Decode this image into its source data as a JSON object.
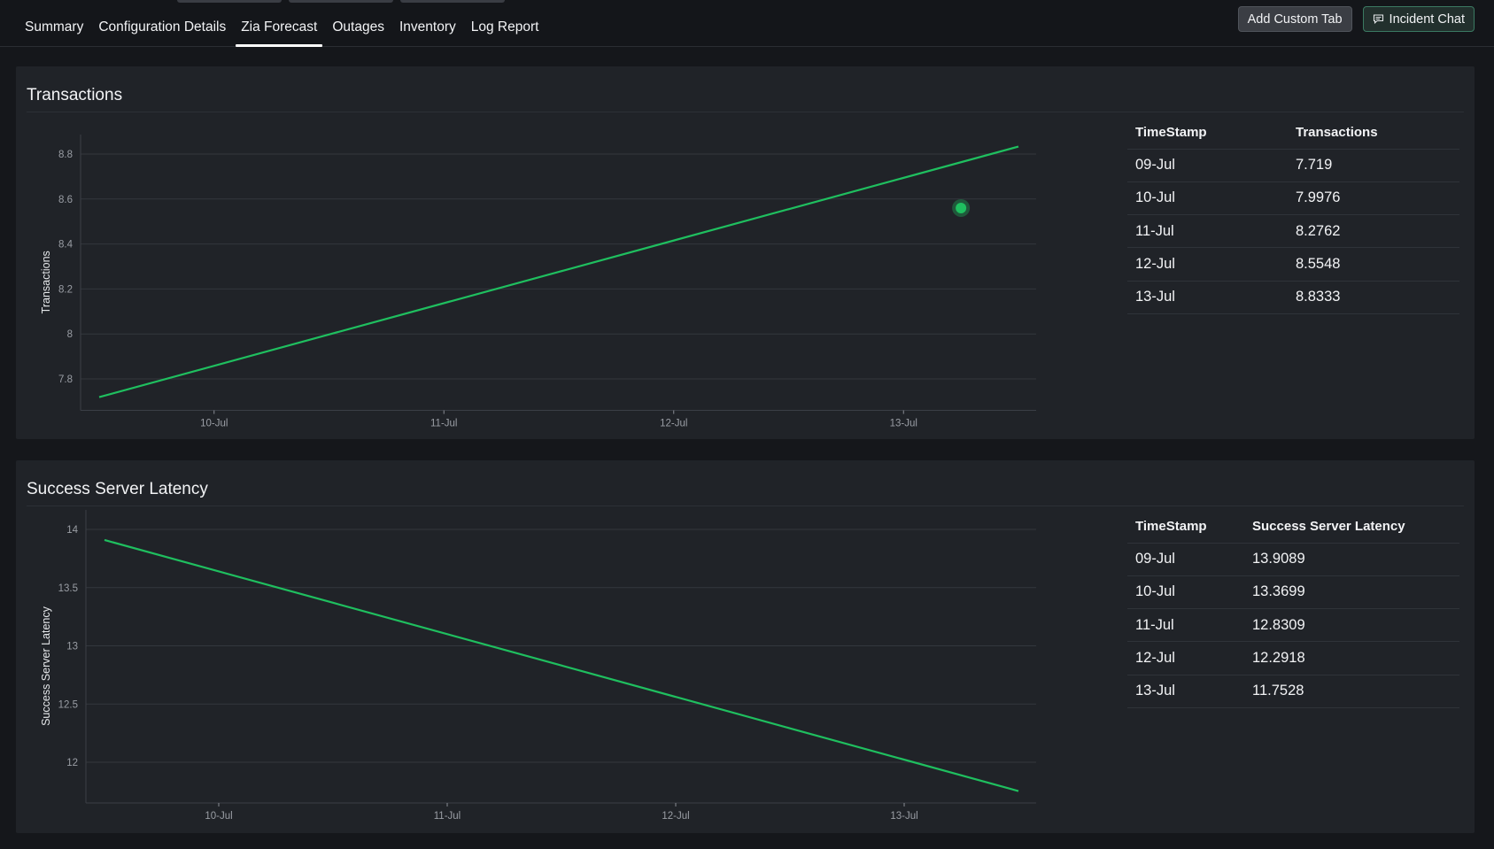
{
  "tabs": [
    {
      "label": "Summary",
      "active": false
    },
    {
      "label": "Configuration Details",
      "active": false
    },
    {
      "label": "Zia Forecast",
      "active": true
    },
    {
      "label": "Outages",
      "active": false
    },
    {
      "label": "Inventory",
      "active": false
    },
    {
      "label": "Log Report",
      "active": false
    }
  ],
  "actions": {
    "add_custom_tab": "Add Custom Tab",
    "incident_chat": "Incident Chat",
    "incident_chat_icon": "chat-bubble-icon"
  },
  "colors": {
    "accent": "#1fbf5f",
    "panel": "#202328",
    "background": "#15171b"
  },
  "panels": [
    {
      "title": "Transactions",
      "table": {
        "headers": [
          "TimeStamp",
          "Transactions"
        ],
        "rows": [
          [
            "09-Jul",
            "7.719"
          ],
          [
            "10-Jul",
            "7.9976"
          ],
          [
            "11-Jul",
            "8.2762"
          ],
          [
            "12-Jul",
            "8.5548"
          ],
          [
            "13-Jul",
            "8.8333"
          ]
        ]
      }
    },
    {
      "title": "Success Server Latency",
      "table": {
        "headers": [
          "TimeStamp",
          "Success Server Latency"
        ],
        "rows": [
          [
            "09-Jul",
            "13.9089"
          ],
          [
            "10-Jul",
            "13.3699"
          ],
          [
            "11-Jul",
            "12.8309"
          ],
          [
            "12-Jul",
            "12.2918"
          ],
          [
            "13-Jul",
            "11.7528"
          ]
        ]
      }
    }
  ],
  "chart_data": [
    {
      "type": "line",
      "title": "Transactions",
      "ylabel": "Transactions",
      "xlabel": "",
      "categories": [
        "09-Jul",
        "10-Jul",
        "11-Jul",
        "12-Jul",
        "13-Jul"
      ],
      "x_tick_labels": [
        "10-Jul",
        "11-Jul",
        "12-Jul",
        "13-Jul"
      ],
      "y_ticks": [
        7.8,
        8,
        8.2,
        8.4,
        8.6,
        8.8
      ],
      "y_tick_labels": [
        "7.8",
        "8",
        "8.2",
        "8.4",
        "8.6",
        "8.8"
      ],
      "ylim": [
        7.66,
        8.88
      ],
      "series": [
        {
          "values": [
            7.719,
            7.9976,
            8.2762,
            8.5548,
            8.8333
          ],
          "color": "#1fbf5f"
        }
      ],
      "highlight": {
        "date": "12-Jul 18:00",
        "value": 8.56
      },
      "grid": true
    },
    {
      "type": "line",
      "title": "Success Server Latency",
      "ylabel": "Success Server Latency",
      "xlabel": "",
      "categories": [
        "09-Jul",
        "10-Jul",
        "11-Jul",
        "12-Jul",
        "13-Jul"
      ],
      "x_tick_labels": [
        "10-Jul",
        "11-Jul",
        "12-Jul",
        "13-Jul"
      ],
      "y_ticks": [
        12,
        12.5,
        13,
        13.5,
        14
      ],
      "y_tick_labels": [
        "12",
        "12.5",
        "13",
        "13.5",
        "14"
      ],
      "ylim": [
        11.65,
        14
      ],
      "series": [
        {
          "values": [
            13.9089,
            13.3699,
            12.8309,
            12.2918,
            11.7528
          ],
          "color": "#1fbf5f"
        }
      ],
      "grid": true
    }
  ]
}
